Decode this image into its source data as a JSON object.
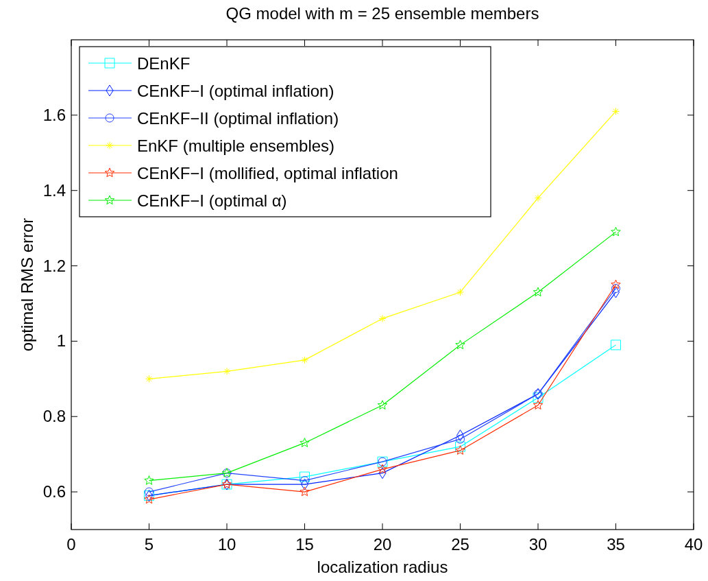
{
  "chart_data": {
    "type": "line",
    "title": "QG model with m = 25 ensemble members",
    "xlabel": "localization radius",
    "ylabel": "optimal RMS error",
    "x": [
      5,
      10,
      15,
      20,
      25,
      30,
      35
    ],
    "xlim": [
      0,
      40
    ],
    "xticks": [
      0,
      5,
      10,
      15,
      20,
      25,
      30,
      35,
      40
    ],
    "ylim": [
      0.5,
      1.8
    ],
    "yticks": [
      0.6,
      0.8,
      1,
      1.2,
      1.4,
      1.6
    ],
    "legend": "top left",
    "grid": false,
    "series": [
      {
        "name": "DEnKF",
        "color": "#00ffff",
        "marker": "square",
        "values": [
          0.59,
          0.62,
          0.64,
          0.68,
          0.72,
          0.85,
          0.99
        ]
      },
      {
        "name": "CEnKF−I (optimal inflation)",
        "color": "#0022ff",
        "marker": "diamond",
        "values": [
          0.59,
          0.62,
          0.62,
          0.65,
          0.75,
          0.86,
          1.13
        ]
      },
      {
        "name": "CEnKF−II (optimal inflation)",
        "color": "#2244ff",
        "marker": "circle",
        "values": [
          0.6,
          0.65,
          0.63,
          0.68,
          0.74,
          0.86,
          1.14
        ]
      },
      {
        "name": "EnKF (multiple ensembles)",
        "color": "#ffff00",
        "marker": "cross",
        "values": [
          0.9,
          0.92,
          0.95,
          1.06,
          1.13,
          1.38,
          1.61
        ]
      },
      {
        "name": "CEnKF−I (mollified, optimal inflation",
        "color": "#ff2a00",
        "marker": "star",
        "values": [
          0.58,
          0.62,
          0.6,
          0.66,
          0.71,
          0.83,
          1.15
        ]
      },
      {
        "name": "CEnKF−I (optimal α)",
        "color": "#00ee00",
        "marker": "star",
        "values": [
          0.63,
          0.65,
          0.73,
          0.83,
          0.99,
          1.13,
          1.29
        ]
      }
    ]
  }
}
